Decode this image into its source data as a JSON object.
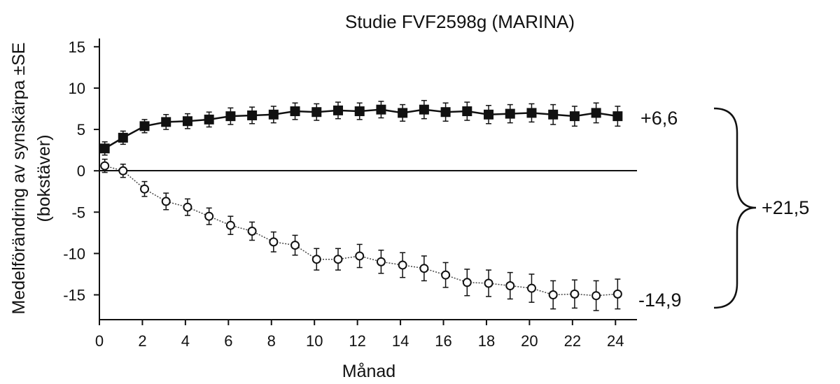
{
  "chart_data": {
    "type": "line",
    "title": "Studie FVF2598g (MARINA)",
    "xlabel": "Månad",
    "ylabel_line1": "Medelförändring av synskärpa ±SE",
    "ylabel_line2": "(bokstäver)",
    "xlim": [
      0,
      25
    ],
    "ylim": [
      -18,
      16
    ],
    "xticks": [
      0,
      2,
      4,
      6,
      8,
      10,
      12,
      14,
      16,
      18,
      20,
      22,
      24
    ],
    "yticks": [
      15,
      10,
      5,
      0,
      -5,
      -10,
      -15
    ],
    "xtick_labels": [
      "0",
      "2",
      "4",
      "6",
      "8",
      "10",
      "12",
      "14",
      "16",
      "18",
      "20",
      "22",
      "24"
    ],
    "ytick_labels": [
      "15",
      "10",
      "5",
      "0",
      "-5",
      "-10",
      "-15"
    ],
    "x": [
      0.25,
      1.1,
      2.1,
      3.1,
      4.1,
      5.1,
      6.1,
      7.1,
      8.1,
      9.1,
      10.1,
      11.1,
      12.1,
      13.1,
      14.1,
      15.1,
      16.1,
      17.1,
      18.1,
      19.1,
      20.1,
      21.1,
      22.1,
      23.1,
      24.1
    ],
    "series": [
      {
        "marker": "filled-square",
        "color": "#111111",
        "values": [
          2.7,
          4.0,
          5.4,
          5.9,
          6.0,
          6.2,
          6.6,
          6.7,
          6.8,
          7.2,
          7.1,
          7.3,
          7.2,
          7.4,
          7.0,
          7.4,
          7.1,
          7.2,
          6.8,
          6.9,
          7.0,
          6.8,
          6.6,
          7.0,
          6.6
        ],
        "errors": [
          0.8,
          0.8,
          0.8,
          0.9,
          0.9,
          0.9,
          1.0,
          1.0,
          1.0,
          1.0,
          1.0,
          1.0,
          1.0,
          1.0,
          1.0,
          1.1,
          1.1,
          1.1,
          1.1,
          1.1,
          1.1,
          1.2,
          1.2,
          1.2,
          1.2
        ]
      },
      {
        "marker": "open-circle",
        "color": "#111111",
        "values": [
          0.6,
          0.0,
          -2.2,
          -3.7,
          -4.4,
          -5.5,
          -6.6,
          -7.3,
          -8.6,
          -9.0,
          -10.7,
          -10.7,
          -10.3,
          -11.0,
          -11.4,
          -11.8,
          -12.6,
          -13.5,
          -13.6,
          -13.9,
          -14.2,
          -15.0,
          -14.9,
          -15.1,
          -14.9
        ]
      }
    ],
    "open_errors": [
      0.8,
      0.8,
      0.9,
      1.0,
      1.0,
      1.0,
      1.1,
      1.1,
      1.2,
      1.2,
      1.3,
      1.3,
      1.4,
      1.4,
      1.5,
      1.5,
      1.5,
      1.6,
      1.6,
      1.6,
      1.7,
      1.7,
      1.7,
      1.8,
      1.8
    ],
    "annotations": {
      "top_value": "+6,6",
      "bottom_value": "-14,9",
      "difference": "+21,5"
    }
  }
}
